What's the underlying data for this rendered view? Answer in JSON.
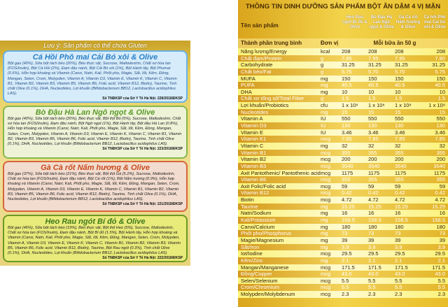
{
  "left": {
    "note": "Lưu ý: Sản phẩm có thể chứa Gluten",
    "products": [
      {
        "name": "Cá Hồi Phô mai Cải Bó xôi & Olive",
        "ingredients": "Bột gạo (40%), Sữa bột tách béo (20%), Béo thực vật, Sucrose, Maltodextrin, Chất xơ hòa tan (FOS/Inulin), Bột Cá Hồi (2%), Đạm đậu nành, Bột Cải Bó xôi (1%), Bột Hành tây, Bột Phomai (0.6%), Hỗn hợp khoáng và Vitamin (Canxi, Natri, Kali, Phốt pho, Magie, Sắt, Iốt, Kẽm, Đồng, Mangan, Selen, Crom, Molypden, Vitamin A, Vitamin D3, Vitamin E, Vitamin K, Vitamin C, Vitamin B1, Vitamin B2, Vitamin B3, Vitamin B5, Vitamin B6, Folic acid, Vitamin B12, Biotin), Taurine, Tinh chất Olive (0.1%), DHA, Nucleotides, Lợi khuẩn (Bifidobacterium BB12, Lactobacillus acidophilus LA5).",
        "reg": "Số TNĐKSP của Sở Y Tế Hà Nội: 228/2018/ĐKSP"
      },
      {
        "name": "Bò Đậu Hà Lan Ngô ngọt & Olive",
        "ingredients": "Bột gạo (40%), Sữa bột tách béo (20%), Béo thực vật, Bột thịt Bò (5%), Sucrose, Maltodextrin, Chất xơ hòa tan (FOS/Inulin), Đạm đậu nành, Bột Ngô ngọt (1%), Bột Hành tây, Bột đậu Hà Lan (0.8%), Hỗn hợp khoáng và Vitamin (Canxi, Natri, Kali, Phốt pho, Magie, Sắt, Iốt, Kẽm, Đồng, Mangan, Selen, Crom, Molypden, Vitamin A, Vitamin D3, Vitamin E, Vitamin K, Vitamin C, Vitamin B1, Vitamin B2, Vitamin B3, Vitamin B5, Vitamin B6, Folic acid, Vitamin B12, Biotin), Taurine, Tinh chất Olive (0.1%), DHA, Nucleotides, Lợi khuẩn (Bifidobacterium BB12, Lactobacillus acidophilus LA5).",
        "reg": "Số TNĐKSP của Sở Y Tế Hà Nội: 223/2018/ĐKSP"
      },
      {
        "name": "Gà Cà rốt Nấm hương & Olive",
        "ingredients": "Bột gạo (37%), Sữa bột tách béo (21%), Béo thực vật, Bột thịt Gà (5.2%), Sucrose, Maltodextrin, Chất xơ hòa tan (FOS/Inulin), Đạm đậu nành, Bột Cà rốt (1%), Bột Nấm hương (0.9%), Hỗn hợp khoáng và Vitamin (Canxi, Natri, Kali, Phốt pho, Magie, Sắt, Iốt, Kẽm, Đồng, Mangan, Selen, Crom, Molypden, Vitamin A, Vitamin D3, Vitamin E, Vitamin K, Vitamin C, Vitamin B1, Vitamin B2, Vitamin B3, Vitamin B5, Vitamin B6, Folic acid, Vitamin B12, Biotin), Taurine, Tinh chất Olive (0.1%), DHA, Nucleotides, Lợi khuẩn (Bifidobacterium BB12, Lactobacillus acidophilus LA5).",
        "reg": "Số TNĐKSP của Sở Y Tế Hà Nội: 221/2018/ĐKSP"
      },
      {
        "name": "Heo Rau ngót Bí đỏ & Olive",
        "ingredients": "Bột gạo (46%), Sữa bột tách béo (19%), Béo thực vật, Bột thịt Heo (5%), Sucrose, Maltodextrin, Chất xơ hòa tan (FOS/Inulin), Đạm đậu nành, Bột Bí đỏ (1.5%), Bột Hành tây, Hỗn hợp khoáng và Vitamin (Canxi, Natri, Kali, Phốt pho, Magie, Sắt, Iốt, Kẽm, Đồng, Mangan, Selen, Crom, Molypden, Vitamin A, Vitamin D3, Vitamin E, Vitamin K, Vitamin C, Vitamin B1, Vitamin B2, Vitamin B3, Vitamin B5, Vitamin B6, Folic acid, Vitamin B12, Biotin), Taurine, Bột Rau ngót (0.3%), Tinh chất Olive (0.1%), DHA, Nucleotides, Lợi khuẩn (Bifidobacterium BB12, Lactobacillus acidophilus LA5).",
        "reg": "Số TNĐKSP của Sở Y Tế Hà Nội: 222/2018/ĐKSP"
      }
    ]
  },
  "table": {
    "title": "THÔNG TIN DINH DƯỠNG SẢN PHẨM BỘT ĂN DẶM 4 VỊ MẶN",
    "product_label": "Tên sản phẩm",
    "products": [
      "Heo Rau ngót Bí đỏ & Olive",
      "Bò Đậu Hà Lan Ngô ngọt & Olive",
      "Gà Cà rốt Nấm hương & Olive",
      "Cá hồi Phô mai Cải bó xôi & Olive"
    ],
    "component_label": "Thành phần trung bình",
    "unit_label": "Đơn vị",
    "serving_label": "Mỗi bữa ăn 50 g",
    "rows": [
      {
        "n": "Năng lượng/Energy",
        "u": "kcal",
        "v": [
          "208",
          "208",
          "208",
          "208"
        ]
      },
      {
        "n": "Chất đạm/Protein",
        "u": "g",
        "v": [
          "7.85",
          "7.95",
          "7.95",
          "7.80"
        ]
      },
      {
        "n": "Carbohydrate",
        "u": "g",
        "v": [
          "31.25",
          "31.25",
          "31.25",
          "31.25"
        ]
      },
      {
        "n": "Chất béo/Fat",
        "u": "g",
        "v": [
          "5.75",
          "5.70",
          "5.70",
          "5.75"
        ]
      },
      {
        "n": "MUFA",
        "u": "mg",
        "v": [
          "150",
          "150",
          "150",
          "150"
        ]
      },
      {
        "n": "PUFA",
        "u": "mg",
        "v": [
          "40.5",
          "40.5",
          "40.5",
          "40.5"
        ]
      },
      {
        "n": "  DHA",
        "u": "mg",
        "v": [
          "10",
          "10",
          "10",
          "10"
        ]
      },
      {
        "n": "Chất xơ tổng số/Total Fiber",
        "u": "g",
        "v": [
          "1.5",
          "1.5",
          "1.5",
          "1.5"
        ]
      },
      {
        "n": "Lợi khuẩn/Probiotics",
        "u": "cfu",
        "v": [
          "1 x 10⁸",
          "1 x 10⁸",
          "1 x 10⁸",
          "1 x 10⁸"
        ]
      },
      {
        "n": "Nucleotides",
        "u": "mg",
        "v": [
          "15",
          "15",
          "15",
          "15"
        ]
      },
      {
        "n": "Vitamin A",
        "u": "IU",
        "v": [
          "550",
          "550",
          "550",
          "550"
        ]
      },
      {
        "n": "Vitamin D3",
        "u": "IU",
        "v": [
          "130",
          "130",
          "130",
          "130"
        ]
      },
      {
        "n": "Vitamin E",
        "u": "IU",
        "v": [
          "3.46",
          "3.46",
          "3.46",
          "3.46"
        ]
      },
      {
        "n": "Vitamin K1",
        "u": "mcg",
        "v": [
          "7.85",
          "7.85",
          "7.85",
          "7.85"
        ]
      },
      {
        "n": "Vitamin C",
        "u": "mg",
        "v": [
          "32",
          "32",
          "32",
          "32"
        ]
      },
      {
        "n": "Vitamin B1",
        "u": "mcg",
        "v": [
          "355",
          "355",
          "355",
          "355"
        ]
      },
      {
        "n": "Vitamin B2",
        "u": "mcg",
        "v": [
          "200",
          "200",
          "200",
          "200"
        ]
      },
      {
        "n": "Vitamin B3",
        "u": "mcg",
        "v": [
          "3540",
          "3540",
          "3540",
          "3540"
        ]
      },
      {
        "n": "Axit Pantothenic/ Pantothenic acid",
        "u": "mcg",
        "v": [
          "1175",
          "1175",
          "1175",
          "1175"
        ]
      },
      {
        "n": "Vitamin B6",
        "u": "mcg",
        "v": [
          "355",
          "355",
          "355",
          "355"
        ]
      },
      {
        "n": "Axit Folic/Folic acid",
        "u": "mcg",
        "v": [
          "59",
          "59",
          "59",
          "59"
        ]
      },
      {
        "n": "Vitamin B12",
        "u": "mcg",
        "v": [
          "0.42",
          "0.42",
          "0.42",
          "0.42"
        ]
      },
      {
        "n": "Biotin",
        "u": "mcg",
        "v": [
          "4.72",
          "4.72",
          "4.72",
          "4.72"
        ]
      },
      {
        "n": "Taurine",
        "u": "mg",
        "v": [
          "15.25",
          "15.25",
          "15.25",
          "15.25"
        ]
      },
      {
        "n": "Natri/Sodium",
        "u": "mg",
        "v": [
          "16",
          "16",
          "16",
          "16"
        ]
      },
      {
        "n": "Kali/Potassium",
        "u": "mg",
        "v": [
          "158.5",
          "158.5",
          "158.5",
          "158.5"
        ]
      },
      {
        "n": "Canxi/Calcium",
        "u": "mg",
        "v": [
          "180",
          "180",
          "180",
          "180"
        ]
      },
      {
        "n": "Phốt pho/Phosphorus",
        "u": "mg",
        "v": [
          "73",
          "73",
          "73",
          "73"
        ]
      },
      {
        "n": "Magie/Magnesium",
        "u": "mg",
        "v": [
          "39",
          "39",
          "39",
          "39"
        ]
      },
      {
        "n": "Sắt/Iron",
        "u": "mg",
        "v": [
          "3.9",
          "3.9",
          "3.9",
          "3.9"
        ]
      },
      {
        "n": "Iot/Iodine",
        "u": "mcg",
        "v": [
          "29.5",
          "29.5",
          "29.5",
          "29.5"
        ]
      },
      {
        "n": "Kẽm/Zinc",
        "u": "mg",
        "v": [
          "2.1",
          "2.1",
          "2.1",
          "2.1"
        ]
      },
      {
        "n": "Mangan/Manganese",
        "u": "mcg",
        "v": [
          "171.5",
          "171.5",
          "171.5",
          "171.5"
        ]
      },
      {
        "n": "Đồng/Copper",
        "u": "mcg",
        "v": [
          "43.0",
          "43.0",
          "43.0",
          "43.0"
        ]
      },
      {
        "n": "Selen/Selenium",
        "u": "mcg",
        "v": [
          "5.5",
          "5.5",
          "5.5",
          "5.5"
        ]
      },
      {
        "n": "Crom/Chromium",
        "u": "mcg",
        "v": [
          "5.5",
          "5.5",
          "5.5",
          "5.5"
        ]
      },
      {
        "n": "Molypden/Molybdenum",
        "u": "mcg",
        "v": [
          "2.3",
          "2.3",
          "2.3",
          "2.3"
        ]
      }
    ]
  }
}
